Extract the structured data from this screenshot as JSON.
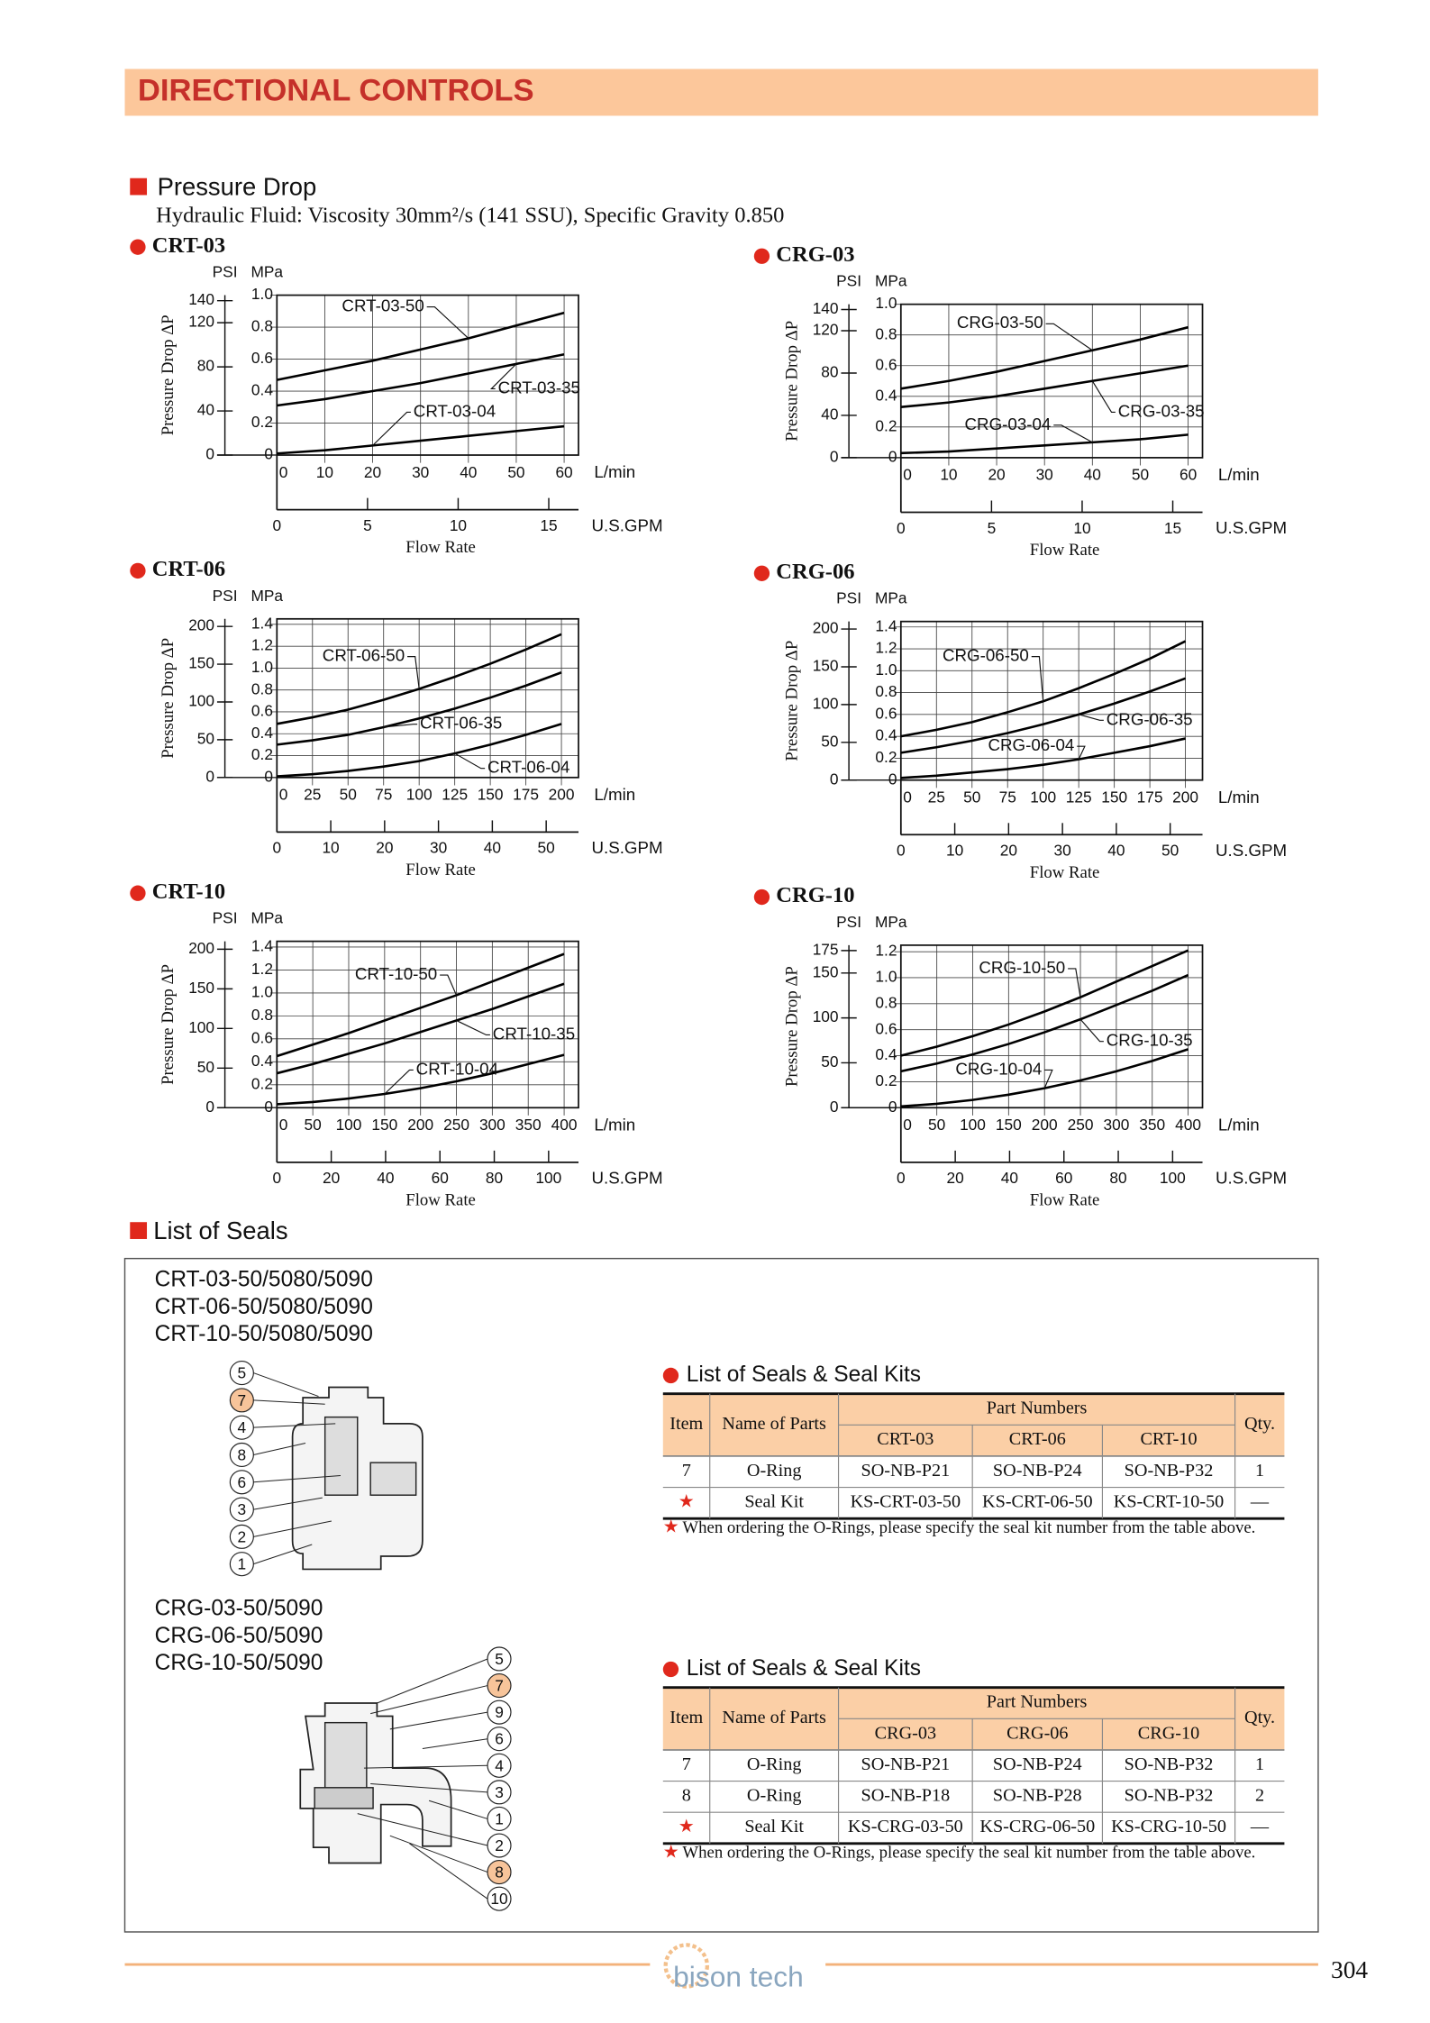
{
  "header": {
    "title": "DIRECTIONAL CONTROLS"
  },
  "pressure_drop": {
    "title": "Pressure Drop",
    "fluid": "Hydraulic Fluid: Viscosity 30mm²/s (141 SSU), Specific Gravity 0.850"
  },
  "chart_data": [
    {
      "type": "line",
      "title": "CRT-03",
      "y_label": "Pressure Drop ΔP",
      "y_unit": "MPa",
      "y2_unit": "PSI",
      "x_unit": "L/min",
      "x2_unit": "U.S.GPM",
      "x_label": "Flow Rate",
      "x": [
        0,
        10,
        20,
        30,
        40,
        50,
        60
      ],
      "xlim": [
        0,
        63
      ],
      "xticks": [
        0,
        10,
        20,
        30,
        40,
        50,
        60
      ],
      "x2lim": [
        0,
        16.64
      ],
      "x2ticks": [
        0,
        5,
        10,
        15
      ],
      "ylim": [
        0,
        1
      ],
      "yticks": [
        0,
        0.2,
        0.4,
        0.6,
        0.8,
        {
          "value": 1,
          "label": "1.0"
        }
      ],
      "y2lim": [
        0,
        145
      ],
      "y2ticks": [
        0,
        40,
        80,
        120,
        140
      ],
      "series": [
        {
          "name": "CRT-03-50",
          "color": "#000",
          "values": [
            0.47,
            0.53,
            0.59,
            0.66,
            0.73,
            0.81,
            0.89
          ]
        },
        {
          "name": "CRT-03-35",
          "color": "#000",
          "values": [
            0.31,
            0.35,
            0.4,
            0.45,
            0.51,
            0.57,
            0.63
          ]
        },
        {
          "name": "CRT-03-04",
          "color": "#000",
          "values": [
            0.01,
            0.03,
            0.06,
            0.09,
            0.12,
            0.15,
            0.18
          ]
        }
      ]
    },
    {
      "type": "line",
      "title": "CRG-03",
      "y_label": "Pressure Drop ΔP",
      "y_unit": "MPa",
      "y2_unit": "PSI",
      "x_unit": "L/min",
      "x2_unit": "U.S.GPM",
      "x_label": "Flow Rate",
      "x": [
        0,
        10,
        20,
        30,
        40,
        50,
        60
      ],
      "xlim": [
        0,
        63
      ],
      "xticks": [
        0,
        10,
        20,
        30,
        40,
        50,
        60
      ],
      "x2lim": [
        0,
        16.64
      ],
      "x2ticks": [
        0,
        5,
        10,
        15
      ],
      "ylim": [
        0,
        1
      ],
      "yticks": [
        0,
        0.2,
        0.4,
        0.6,
        0.8,
        {
          "value": 1,
          "label": "1.0"
        }
      ],
      "y2lim": [
        0,
        145
      ],
      "y2ticks": [
        0,
        40,
        80,
        120,
        140
      ],
      "series": [
        {
          "name": "CRG-03-50",
          "color": "#000",
          "values": [
            0.45,
            0.5,
            0.56,
            0.63,
            0.7,
            0.77,
            0.85
          ]
        },
        {
          "name": "CRG-03-35",
          "color": "#000",
          "values": [
            0.33,
            0.36,
            0.4,
            0.45,
            0.5,
            0.55,
            0.6
          ]
        },
        {
          "name": "CRG-03-04",
          "color": "#000",
          "values": [
            0.03,
            0.04,
            0.06,
            0.08,
            0.1,
            0.12,
            0.15
          ]
        }
      ]
    },
    {
      "type": "line",
      "title": "CRT-06",
      "y_label": "Pressure Drop ΔP",
      "y_unit": "MPa",
      "y2_unit": "PSI",
      "x_unit": "L/min",
      "x2_unit": "U.S.GPM",
      "x_label": "Flow Rate",
      "x": [
        0,
        25,
        50,
        75,
        100,
        125,
        150,
        175,
        200
      ],
      "xlim": [
        0,
        212
      ],
      "xticks": [
        0,
        25,
        50,
        75,
        100,
        125,
        150,
        175,
        200
      ],
      "x2lim": [
        0,
        56
      ],
      "x2ticks": [
        0,
        10,
        20,
        30,
        40,
        50
      ],
      "ylim": [
        0,
        1.45
      ],
      "yticks": [
        0,
        0.2,
        0.4,
        0.6,
        0.8,
        {
          "value": 1,
          "label": "1.0"
        },
        1.2,
        1.4
      ],
      "y2lim": [
        0,
        210
      ],
      "y2ticks": [
        0,
        50,
        100,
        150,
        200
      ],
      "series": [
        {
          "name": "CRT-06-50",
          "color": "#000",
          "values": [
            0.49,
            0.55,
            0.62,
            0.71,
            0.81,
            0.92,
            1.04,
            1.17,
            1.31
          ]
        },
        {
          "name": "CRT-06-35",
          "color": "#000",
          "values": [
            0.3,
            0.34,
            0.39,
            0.46,
            0.54,
            0.63,
            0.73,
            0.84,
            0.96
          ]
        },
        {
          "name": "CRT-06-04",
          "color": "#000",
          "values": [
            0.01,
            0.03,
            0.06,
            0.1,
            0.15,
            0.22,
            0.3,
            0.39,
            0.49
          ]
        }
      ]
    },
    {
      "type": "line",
      "title": "CRG-06",
      "y_label": "Pressure Drop ΔP",
      "y_unit": "MPa",
      "y2_unit": "PSI",
      "x_unit": "L/min",
      "x2_unit": "U.S.GPM",
      "x_label": "Flow Rate",
      "x": [
        0,
        25,
        50,
        75,
        100,
        125,
        150,
        175,
        200
      ],
      "xlim": [
        0,
        212
      ],
      "xticks": [
        0,
        25,
        50,
        75,
        100,
        125,
        150,
        175,
        200
      ],
      "x2lim": [
        0,
        56
      ],
      "x2ticks": [
        0,
        10,
        20,
        30,
        40,
        50
      ],
      "ylim": [
        0,
        1.45
      ],
      "yticks": [
        0,
        0.2,
        0.4,
        0.6,
        0.8,
        {
          "value": 1,
          "label": "1.0"
        },
        1.2,
        1.4
      ],
      "y2lim": [
        0,
        210
      ],
      "y2ticks": [
        0,
        50,
        100,
        150,
        200
      ],
      "series": [
        {
          "name": "CRG-06-50",
          "color": "#000",
          "values": [
            0.4,
            0.46,
            0.53,
            0.62,
            0.72,
            0.84,
            0.97,
            1.11,
            1.27
          ]
        },
        {
          "name": "CRG-06-35",
          "color": "#000",
          "values": [
            0.25,
            0.3,
            0.36,
            0.43,
            0.51,
            0.6,
            0.7,
            0.81,
            0.93
          ]
        },
        {
          "name": "CRG-06-04",
          "color": "#000",
          "values": [
            0.02,
            0.04,
            0.07,
            0.1,
            0.14,
            0.19,
            0.25,
            0.31,
            0.38
          ]
        }
      ]
    },
    {
      "type": "line",
      "title": "CRT-10",
      "y_label": "Pressure Drop ΔP",
      "y_unit": "MPa",
      "y2_unit": "PSI",
      "x_unit": "L/min",
      "x2_unit": "U.S.GPM",
      "x_label": "Flow Rate",
      "x": [
        0,
        50,
        100,
        150,
        200,
        250,
        300,
        350,
        400
      ],
      "xlim": [
        0,
        420
      ],
      "xticks": [
        0,
        50,
        100,
        150,
        200,
        250,
        300,
        350,
        400
      ],
      "x2lim": [
        0,
        111
      ],
      "x2ticks": [
        0,
        20,
        40,
        60,
        80,
        100
      ],
      "ylim": [
        0,
        1.45
      ],
      "yticks": [
        0,
        0.2,
        0.4,
        0.6,
        0.8,
        {
          "value": 1,
          "label": "1.0"
        },
        1.2,
        1.4
      ],
      "y2lim": [
        0,
        210
      ],
      "y2ticks": [
        0,
        50,
        100,
        150,
        200
      ],
      "series": [
        {
          "name": "CRT-10-50",
          "color": "#000",
          "values": [
            0.45,
            0.55,
            0.65,
            0.76,
            0.87,
            0.98,
            1.1,
            1.22,
            1.34
          ]
        },
        {
          "name": "CRT-10-35",
          "color": "#000",
          "values": [
            0.3,
            0.38,
            0.47,
            0.56,
            0.66,
            0.76,
            0.86,
            0.97,
            1.08
          ]
        },
        {
          "name": "CRT-10-04",
          "color": "#000",
          "values": [
            0.03,
            0.05,
            0.08,
            0.12,
            0.17,
            0.23,
            0.3,
            0.38,
            0.46
          ]
        }
      ]
    },
    {
      "type": "line",
      "title": "CRG-10",
      "y_label": "Pressure Drop ΔP",
      "y_unit": "MPa",
      "y2_unit": "PSI",
      "x_unit": "L/min",
      "x2_unit": "U.S.GPM",
      "x_label": "Flow Rate",
      "x": [
        0,
        50,
        100,
        150,
        200,
        250,
        300,
        350,
        400
      ],
      "xlim": [
        0,
        420
      ],
      "xticks": [
        0,
        50,
        100,
        150,
        200,
        250,
        300,
        350,
        400
      ],
      "x2lim": [
        0,
        111
      ],
      "x2ticks": [
        0,
        20,
        40,
        60,
        80,
        100
      ],
      "ylim": [
        0,
        1.25
      ],
      "yticks": [
        0,
        0.2,
        0.4,
        0.6,
        0.8,
        {
          "value": 1,
          "label": "1.0"
        },
        1.2
      ],
      "y2lim": [
        0,
        181
      ],
      "y2ticks": [
        0,
        50,
        100,
        150,
        175
      ],
      "series": [
        {
          "name": "CRG-10-50",
          "color": "#000",
          "values": [
            0.4,
            0.47,
            0.55,
            0.64,
            0.74,
            0.85,
            0.97,
            1.09,
            1.21
          ]
        },
        {
          "name": "CRG-10-35",
          "color": "#000",
          "values": [
            0.28,
            0.34,
            0.41,
            0.49,
            0.58,
            0.68,
            0.79,
            0.9,
            1.02
          ]
        },
        {
          "name": "CRG-10-04",
          "color": "#000",
          "values": [
            0.01,
            0.03,
            0.06,
            0.1,
            0.15,
            0.21,
            0.28,
            0.36,
            0.45
          ]
        }
      ]
    }
  ],
  "seals": {
    "title": "List of Seals",
    "groups": [
      {
        "models": [
          "CRT-03-50/5080/5090",
          "CRT-06-50/5080/5090",
          "CRT-10-50/5080/5090"
        ],
        "callouts": [
          "5",
          "7",
          "4",
          "8",
          "6",
          "3",
          "2",
          "1"
        ],
        "table": {
          "title": "List of Seals & Seal Kits",
          "item": "Item",
          "name": "Name of Parts",
          "part_numbers": "Part Numbers",
          "qty": "Qty.",
          "models": [
            "CRT-03",
            "CRT-06",
            "CRT-10"
          ],
          "rows": [
            [
              "7",
              "O-Ring",
              "SO-NB-P21",
              "SO-NB-P24",
              "SO-NB-P32",
              "1"
            ],
            [
              "★",
              "Seal Kit",
              "KS-CRT-03-50",
              "KS-CRT-06-50",
              "KS-CRT-10-50",
              "—"
            ]
          ],
          "note_mark": "★",
          "note": "When ordering the O-Rings, please specify the seal kit number from the table above."
        }
      },
      {
        "models": [
          "CRG-03-50/5090",
          "CRG-06-50/5090",
          "CRG-10-50/5090"
        ],
        "callouts": [
          "5",
          "7",
          "9",
          "6",
          "4",
          "3",
          "1",
          "2",
          "8",
          "10"
        ],
        "table": {
          "title": "List of Seals & Seal Kits",
          "item": "Item",
          "name": "Name of Parts",
          "part_numbers": "Part Numbers",
          "qty": "Qty.",
          "models": [
            "CRG-03",
            "CRG-06",
            "CRG-10"
          ],
          "rows": [
            [
              "7",
              "O-Ring",
              "SO-NB-P21",
              "SO-NB-P24",
              "SO-NB-P32",
              "1"
            ],
            [
              "8",
              "O-Ring",
              "SO-NB-P18",
              "SO-NB-P28",
              "SO-NB-P32",
              "2"
            ],
            [
              "★",
              "Seal Kit",
              "KS-CRG-03-50",
              "KS-CRG-06-50",
              "KS-CRG-10-50",
              "—"
            ]
          ],
          "note_mark": "★",
          "note": "When ordering the O-Rings, please specify the seal kit number from the table above."
        }
      }
    ]
  },
  "footer": {
    "logo": "bison tech",
    "page": "304"
  }
}
